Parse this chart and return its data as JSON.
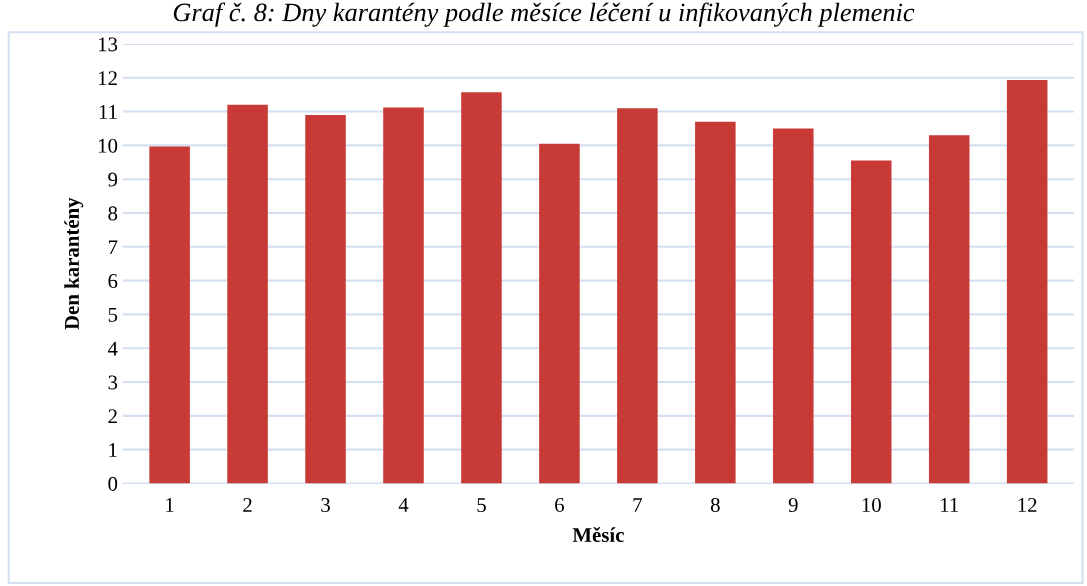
{
  "chart_data": {
    "type": "bar",
    "title": "Graf č. 8: Dny karantény podle měsíce léčení u infikovaných plemenic",
    "xlabel": "Měsíc",
    "ylabel": "Den karantény",
    "categories": [
      "1",
      "2",
      "3",
      "4",
      "5",
      "6",
      "7",
      "8",
      "9",
      "10",
      "11",
      "12"
    ],
    "values": [
      9.97,
      11.2,
      10.9,
      11.12,
      11.57,
      10.05,
      11.1,
      10.7,
      10.5,
      9.55,
      10.3,
      11.93
    ],
    "color": "#c83a36",
    "ylim": [
      0,
      13
    ],
    "yticks": [
      0,
      1,
      2,
      3,
      4,
      5,
      6,
      7,
      8,
      9,
      10,
      11,
      12,
      13
    ],
    "grid": "y"
  }
}
